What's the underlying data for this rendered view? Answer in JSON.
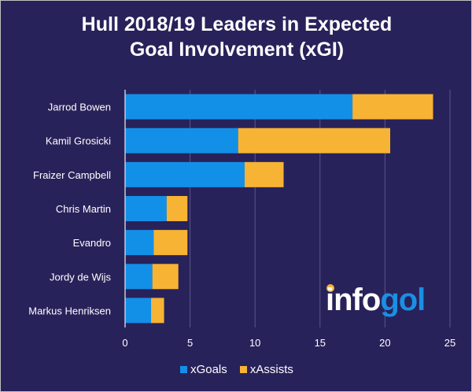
{
  "title_line1": "Hull 2018/19 Leaders in Expected",
  "title_line2": "Goal Involvement (xGI)",
  "logo": {
    "part1": "info",
    "part2": "gol"
  },
  "colors": {
    "xGoals": "#1290e8",
    "xAssists": "#f7b334",
    "background": "#28225a"
  },
  "chart_data": {
    "type": "bar",
    "orientation": "horizontal",
    "stacked": true,
    "title": "Hull 2018/19 Leaders in Expected Goal Involvement (xGI)",
    "categories": [
      "Jarrod Bowen",
      "Kamil Grosicki",
      "Fraizer Campbell",
      "Chris Martin",
      "Evandro",
      "Jordy de Wijs",
      "Markus Henriksen"
    ],
    "series": [
      {
        "name": "xGoals",
        "values": [
          17.5,
          8.7,
          9.2,
          3.2,
          2.2,
          2.1,
          2.0
        ]
      },
      {
        "name": "xAssists",
        "values": [
          6.2,
          11.7,
          3.0,
          1.6,
          2.6,
          2.0,
          1.0
        ]
      }
    ],
    "xlim": [
      0,
      25
    ],
    "xticks": [
      "0",
      "5",
      "10",
      "15",
      "20",
      "25"
    ],
    "grid": true,
    "legend": "bottom"
  }
}
